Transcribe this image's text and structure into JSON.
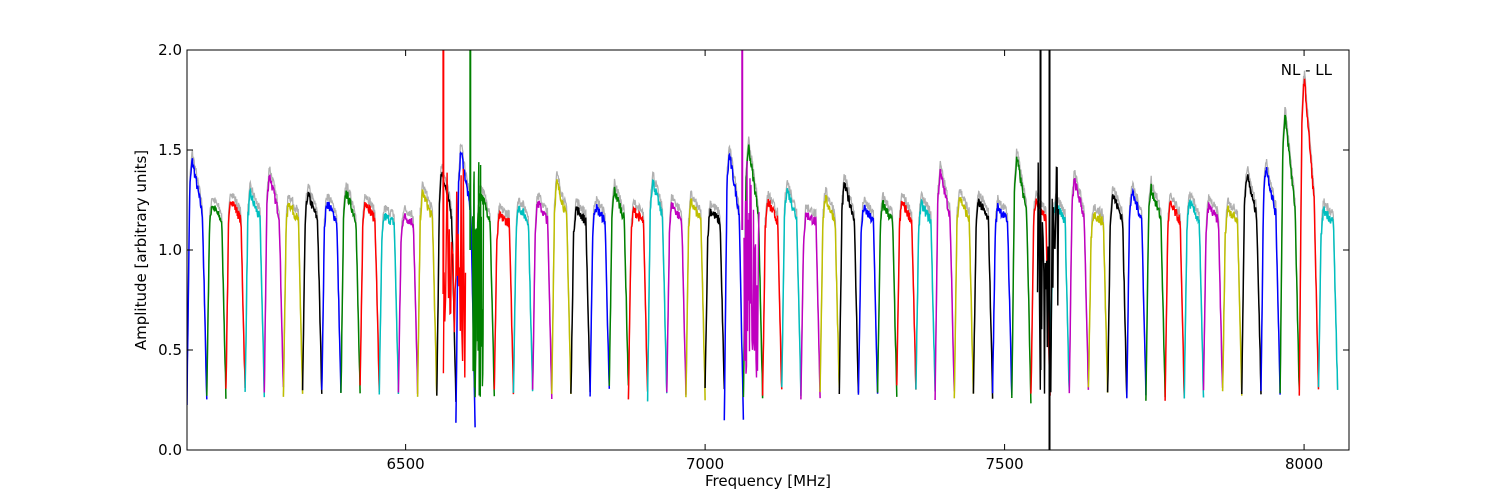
{
  "chart_data": {
    "type": "line",
    "title": "",
    "xlabel": "Frequency [MHz]",
    "ylabel": "Amplitude [arbitrary units]",
    "annotation": "NL - LL",
    "xlim": [
      6135,
      8075
    ],
    "ylim": [
      0.0,
      2.0
    ],
    "xticks": [
      6500,
      7000,
      7500,
      8000
    ],
    "yticks": [
      0.0,
      0.5,
      1.0,
      1.5,
      2.0
    ],
    "ytick_labels": [
      "0.0",
      "0.5",
      "1.0",
      "1.5",
      "2.0"
    ],
    "grid": false,
    "legend": "none",
    "background_series_color": "#b0b0b0",
    "color_cycle": [
      "#0000ff",
      "#008000",
      "#ff0000",
      "#00bfbf",
      "#bf00bf",
      "#bfbf00",
      "#000000"
    ],
    "band_edges_mhz": [
      6135,
      6168,
      6200,
      6232,
      6264,
      6296,
      6328,
      6360,
      6392,
      6424,
      6456,
      6488,
      6520,
      6552,
      6584,
      6616,
      6648,
      6680,
      6712,
      6744,
      6776,
      6808,
      6840,
      6872,
      6904,
      6936,
      6968,
      7000,
      7032,
      7064,
      7096,
      7128,
      7160,
      7192,
      7224,
      7256,
      7288,
      7320,
      7352,
      7384,
      7416,
      7448,
      7480,
      7512,
      7544,
      7576,
      7608,
      7640,
      7672,
      7704,
      7736,
      7768,
      7800,
      7832,
      7864,
      7896,
      7928,
      7960,
      7992,
      8024,
      8056,
      8075
    ],
    "band_peak_amplitudes": [
      1.45,
      1.23,
      1.26,
      1.28,
      1.38,
      1.24,
      1.28,
      1.24,
      1.29,
      1.25,
      1.17,
      1.17,
      1.29,
      1.4,
      1.5,
      1.29,
      1.17,
      1.22,
      1.24,
      1.34,
      1.21,
      1.22,
      1.3,
      1.2,
      1.35,
      1.23,
      1.24,
      1.2,
      1.48,
      1.52,
      1.24,
      1.31,
      1.18,
      1.26,
      1.33,
      1.21,
      1.23,
      1.24,
      1.23,
      1.39,
      1.27,
      1.25,
      1.22,
      1.46,
      1.26,
      1.24,
      1.35,
      1.18,
      1.28,
      1.29,
      1.31,
      1.23,
      1.24,
      1.22,
      1.21,
      1.38,
      1.42,
      1.67,
      1.86,
      1.2
    ],
    "band_min_amplitudes": [
      0.25,
      0.27,
      0.3,
      0.28,
      0.29,
      0.27,
      0.29,
      0.28,
      0.27,
      0.3,
      0.29,
      0.3,
      0.26,
      0.25,
      0.13,
      0.28,
      0.3,
      0.29,
      0.28,
      0.28,
      0.27,
      0.29,
      0.3,
      0.27,
      0.26,
      0.28,
      0.27,
      0.3,
      0.13,
      0.27,
      0.28,
      0.29,
      0.27,
      0.3,
      0.28,
      0.27,
      0.28,
      0.3,
      0.29,
      0.27,
      0.26,
      0.28,
      0.29,
      0.25,
      0.27,
      0.28,
      0.28,
      0.29,
      0.27,
      0.28,
      0.27,
      0.26,
      0.28,
      0.29,
      0.28,
      0.3,
      0.3,
      0.28,
      0.28,
      0.3
    ],
    "spikes": [
      {
        "x": 6563,
        "from": 0.78,
        "to": 2.0,
        "color": "#ff0000"
      },
      {
        "x": 6608,
        "from": 1.0,
        "to": 2.0,
        "color": "#008000"
      },
      {
        "x": 7062,
        "from": 1.1,
        "to": 2.0,
        "color": "#bf00bf"
      },
      {
        "x": 7560,
        "from": 0.4,
        "to": 2.0,
        "color": "#000000"
      },
      {
        "x": 7575,
        "from": 0.0,
        "to": 2.0,
        "color": "#000000"
      }
    ]
  }
}
